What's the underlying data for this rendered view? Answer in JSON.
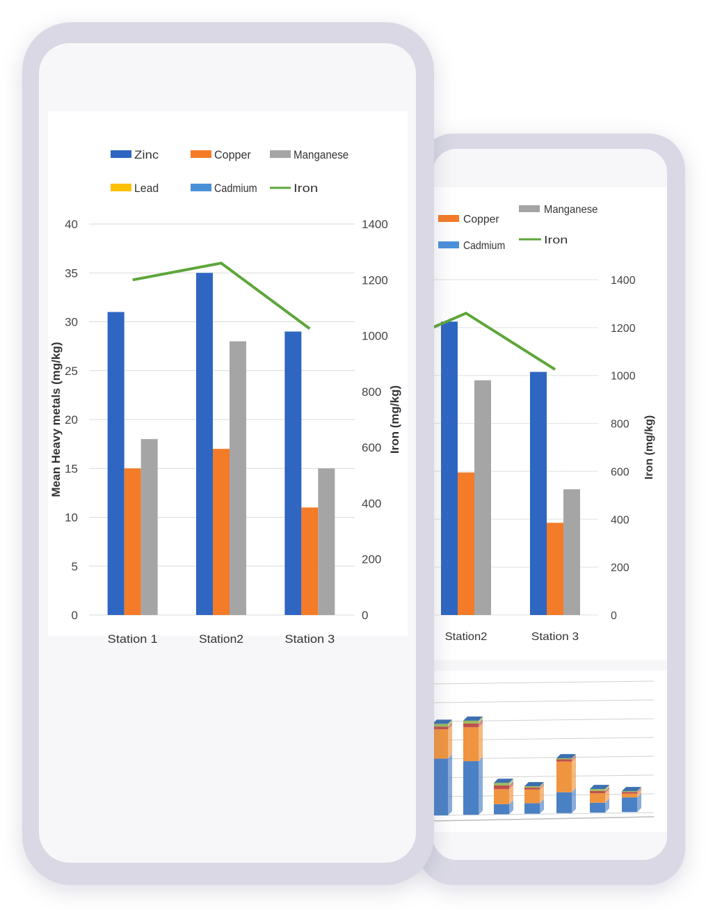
{
  "chart_data": [
    {
      "type": "bar",
      "title": "",
      "xlabel": "",
      "ylabel": "Mean Heavy metals (mg/kg)",
      "y2label": "Iron (mg/kg)",
      "categories": [
        "Station 1",
        "Station2",
        "Station 3"
      ],
      "ylim": [
        0,
        40
      ],
      "yticks": [
        "0",
        "5",
        "10",
        "15",
        "20",
        "25",
        "30",
        "35",
        "40"
      ],
      "y2lim": [
        0,
        1400
      ],
      "y2ticks": [
        "0",
        "200",
        "400",
        "600",
        "800",
        "1000",
        "1200",
        "1400"
      ],
      "legend_position": "top",
      "series": [
        {
          "name": "Zinc",
          "type": "bar",
          "axis": "left",
          "color": "#2e66c2",
          "values": [
            31,
            35,
            29
          ]
        },
        {
          "name": "Copper",
          "type": "bar",
          "axis": "left",
          "color": "#f47b27",
          "values": [
            15,
            17,
            11
          ]
        },
        {
          "name": "Manganese",
          "type": "bar",
          "axis": "left",
          "color": "#a5a5a5",
          "values": [
            18,
            28,
            15
          ]
        },
        {
          "name": "Lead",
          "type": "bar",
          "axis": "left",
          "color": "#ffc000",
          "values": [
            0,
            0,
            0
          ]
        },
        {
          "name": "Cadmium",
          "type": "bar",
          "axis": "left",
          "color": "#4a90d9",
          "values": [
            0,
            0,
            0
          ]
        },
        {
          "name": "Iron",
          "type": "line",
          "axis": "right",
          "color": "#5ea63a",
          "values": [
            1200,
            1260,
            1025
          ]
        }
      ]
    },
    {
      "type": "bar",
      "partial": true,
      "y2label": "Iron (mg/kg)",
      "categories": [
        "Station2",
        "Station 3"
      ],
      "y2lim": [
        0,
        1400
      ],
      "y2ticks": [
        "0",
        "200",
        "400",
        "600",
        "800",
        "1000",
        "1200",
        "1400"
      ],
      "legend": [
        "Copper",
        "Manganese",
        "Cadmium",
        "Iron"
      ]
    },
    {
      "type": "bar",
      "stacked": true,
      "partial": true,
      "series_colors": [
        "#4a80c4",
        "#f0953f",
        "#c0504d",
        "#9bbb59"
      ],
      "bars": [
        {
          "name": "bar-1",
          "segments": [
            0.62,
            0.32,
            0.03,
            0.03
          ]
        },
        {
          "name": "bar-2",
          "segments": [
            0.57,
            0.36,
            0.04,
            0.03
          ]
        },
        {
          "name": "bar-3",
          "segments": [
            0.32,
            0.48,
            0.12,
            0.08
          ]
        },
        {
          "name": "bar-4",
          "segments": [
            0.38,
            0.5,
            0.07,
            0.05
          ]
        },
        {
          "name": "bar-5",
          "segments": [
            0.38,
            0.56,
            0.04,
            0.02
          ]
        },
        {
          "name": "bar-6",
          "segments": [
            0.42,
            0.4,
            0.1,
            0.08
          ]
        },
        {
          "name": "bar-7",
          "segments": [
            0.7,
            0.18,
            0.08,
            0.04
          ]
        }
      ],
      "totals": [
        0.7,
        0.72,
        0.24,
        0.21,
        0.42,
        0.18,
        0.16
      ]
    }
  ]
}
